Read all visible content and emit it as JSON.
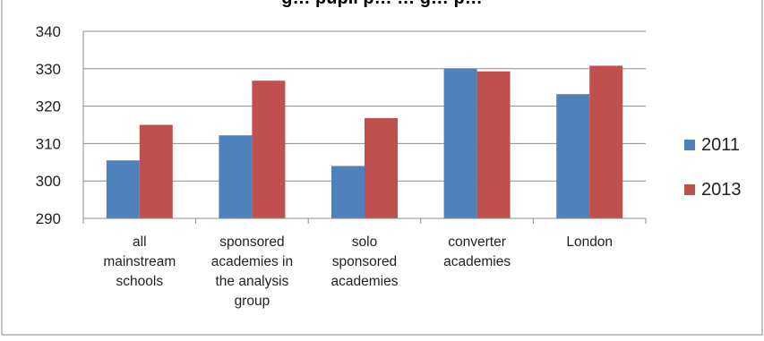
{
  "chart_data": {
    "type": "bar",
    "title": "g… pupil p… … g… p…",
    "xlabel": "",
    "ylabel": "",
    "ylim": [
      290,
      340
    ],
    "yticks": [
      290,
      300,
      310,
      320,
      330,
      340
    ],
    "grid": true,
    "legend_position": "right",
    "categories": [
      [
        "all",
        "mainstream",
        "schools"
      ],
      [
        "sponsored",
        "academies in",
        "the analysis",
        "group"
      ],
      [
        "solo",
        "sponsored",
        "academies"
      ],
      [
        "converter",
        "academies"
      ],
      [
        "London"
      ]
    ],
    "series": [
      {
        "name": "2011",
        "color": "#4f81bd",
        "values": [
          305.5,
          312.2,
          304.0,
          330.0,
          323.2
        ]
      },
      {
        "name": "2013",
        "color": "#c0504d",
        "values": [
          315.0,
          326.8,
          316.8,
          329.3,
          330.8
        ]
      }
    ]
  }
}
